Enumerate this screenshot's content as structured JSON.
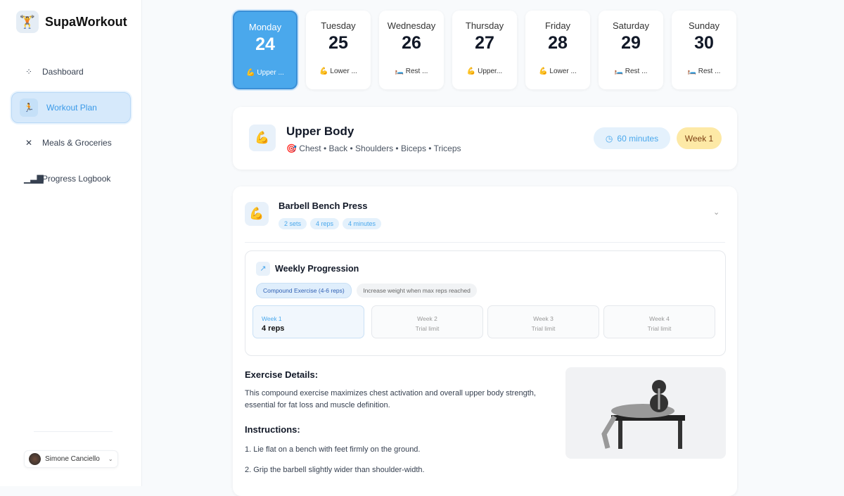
{
  "app": {
    "name": "SupaWorkout"
  },
  "sidebar": {
    "items": [
      {
        "label": "Dashboard",
        "icon": "grid-icon"
      },
      {
        "label": "Workout Plan",
        "icon": "runner-icon",
        "active": true
      },
      {
        "label": "Meals & Groceries",
        "icon": "utensils-icon"
      },
      {
        "label": "Progress Logbook",
        "icon": "chart-icon"
      }
    ],
    "user": "Simone Canciello"
  },
  "days": [
    {
      "name": "Monday",
      "num": "24",
      "tag": "💪 Upper ...",
      "active": true
    },
    {
      "name": "Tuesday",
      "num": "25",
      "tag": "💪 Lower ..."
    },
    {
      "name": "Wednesday",
      "num": "26",
      "tag": "🛏️ Rest ..."
    },
    {
      "name": "Thursday",
      "num": "27",
      "tag": "💪 Upper..."
    },
    {
      "name": "Friday",
      "num": "28",
      "tag": "💪 Lower ..."
    },
    {
      "name": "Saturday",
      "num": "29",
      "tag": "🛏️ Rest ..."
    },
    {
      "name": "Sunday",
      "num": "30",
      "tag": "🛏️ Rest ..."
    }
  ],
  "workout": {
    "title": "Upper Body",
    "muscles": "🎯 Chest • Back • Shoulders • Biceps • Triceps",
    "duration": "60 minutes",
    "week": "Week 1"
  },
  "exercise": {
    "name": "Barbell Bench Press",
    "chips": [
      "2 sets",
      "4 reps",
      "4 minutes"
    ],
    "progression": {
      "title": "Weekly Progression",
      "tags": [
        "Compound Exercise (4-6 reps)",
        "Increase weight when max reps reached"
      ],
      "weeks": [
        {
          "label": "Week 1",
          "value": "4 reps"
        },
        {
          "label": "Week 2",
          "value": "Trial limit"
        },
        {
          "label": "Week 3",
          "value": "Trial limit"
        },
        {
          "label": "Week 4",
          "value": "Trial limit"
        }
      ]
    },
    "details_title": "Exercise Details:",
    "details": "This compound exercise maximizes chest activation and overall upper body strength, essential for fat loss and muscle definition.",
    "instructions_title": "Instructions:",
    "instructions": [
      "1.   Lie flat on a bench with feet firmly on the ground.",
      "2.   Grip the barbell slightly wider than shoulder-width."
    ]
  },
  "colors": {
    "accent": "#4aa8ec",
    "week_badge": "#fde9a6"
  }
}
